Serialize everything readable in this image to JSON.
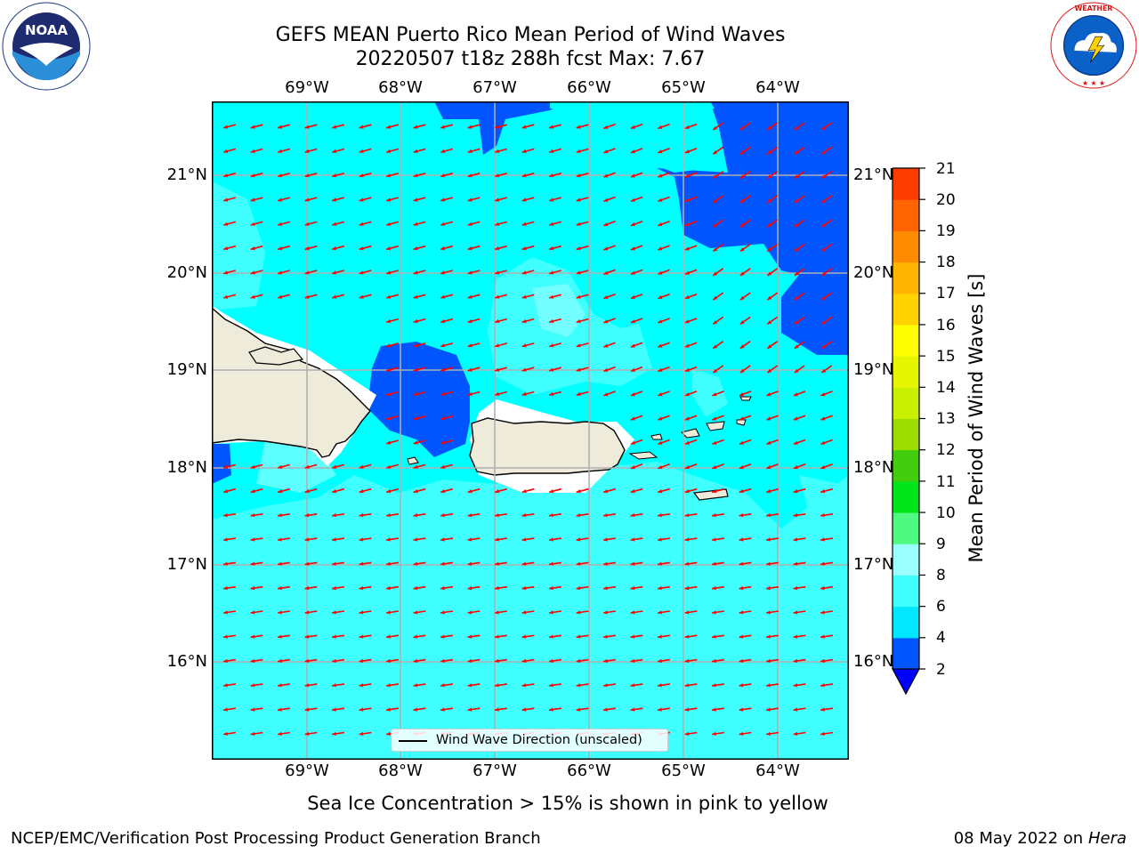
{
  "title": {
    "line1": "GEFS MEAN Puerto Rico Mean Period of Wind Waves",
    "line2": "20220507 t18z 288h fcst   Max: 7.67"
  },
  "logos": {
    "left": {
      "name": "noaa-logo",
      "text": "NOAA",
      "ring_text": "NATIONAL OCEANIC AND ATMOSPHERIC ADMINISTRATION · U.S. DEPARTMENT OF COMMERCE"
    },
    "right": {
      "name": "nws-logo",
      "ring_text": "NATIONAL WEATHER SERVICE"
    }
  },
  "map": {
    "lon_labels": [
      "69°W",
      "68°W",
      "67°W",
      "66°W",
      "65°W",
      "64°W"
    ],
    "lat_labels": [
      "21°N",
      "20°N",
      "19°N",
      "18°N",
      "17°N",
      "16°N"
    ],
    "legend_text": "Wind Wave Direction (unscaled)",
    "arrow_color": "#ff0000",
    "land_color": "#efebdb"
  },
  "colorbar": {
    "label": "Mean Period of Wind Waves [s]",
    "ticks": [
      "2",
      "4",
      "6",
      "8",
      "9",
      "10",
      "11",
      "12",
      "13",
      "14",
      "15",
      "16",
      "17",
      "18",
      "19",
      "20",
      "21"
    ],
    "colors": [
      "#0055ff",
      "#00e8ff",
      "#40ffff",
      "#9cffff",
      "#50fa82",
      "#00e61a",
      "#42ce0f",
      "#9cdc00",
      "#c8f000",
      "#e6f500",
      "#ffff00",
      "#ffd200",
      "#ffb400",
      "#ff8c00",
      "#ff6400",
      "#ff3c00",
      "#ff0000"
    ],
    "under_color": "#0000ff"
  },
  "subtitle": "Sea Ice Concentration > 15% is shown in pink to yellow",
  "footer": {
    "left": "NCEP/EMC/Verification Post Processing Product Generation Branch",
    "date": "08 May 2022 on",
    "host": "Hera"
  }
}
